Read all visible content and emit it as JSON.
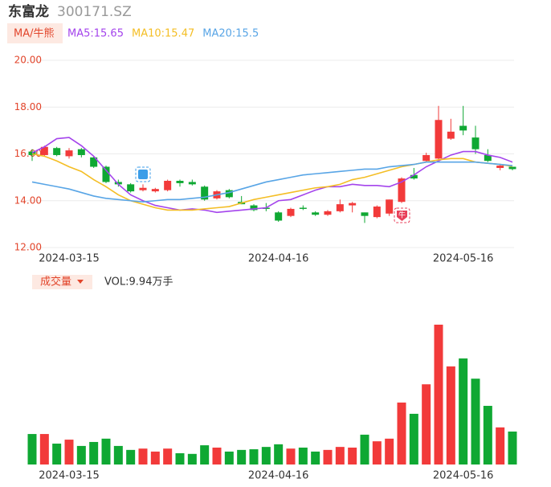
{
  "header": {
    "name": "东富龙",
    "code": "300171.SZ"
  },
  "chart_data": [
    {
      "type": "candlestick",
      "button": "MA/牛熊",
      "categories": [
        null,
        null,
        null,
        "2024-03-15",
        null,
        null,
        null,
        null,
        null,
        null,
        null,
        null,
        null,
        null,
        null,
        null,
        null,
        null,
        null,
        null,
        "2024-04-16",
        null,
        null,
        null,
        null,
        null,
        null,
        null,
        null,
        null,
        null,
        null,
        null,
        null,
        null,
        "2024-05-16",
        null,
        null,
        null,
        null
      ],
      "open": [
        16.1,
        15.95,
        16.25,
        15.9,
        16.2,
        15.85,
        15.45,
        14.8,
        14.7,
        14.45,
        14.4,
        14.45,
        14.85,
        14.8,
        14.6,
        14.1,
        14.45,
        13.95,
        13.8,
        13.7,
        13.5,
        13.35,
        13.7,
        13.5,
        13.4,
        13.55,
        13.8,
        13.5,
        13.3,
        13.45,
        13.95,
        15.1,
        15.7,
        15.8,
        16.65,
        17.2,
        16.7,
        15.95,
        15.4,
        15.45
      ],
      "high": [
        16.2,
        16.35,
        16.3,
        16.25,
        16.25,
        15.9,
        15.5,
        14.9,
        14.75,
        14.7,
        14.55,
        14.9,
        14.9,
        14.9,
        14.65,
        14.45,
        14.5,
        14.2,
        13.85,
        13.9,
        13.55,
        13.7,
        13.8,
        13.55,
        13.6,
        14.05,
        13.95,
        13.5,
        13.8,
        14.05,
        15.0,
        15.4,
        16.05,
        18.05,
        17.5,
        18.05,
        17.2,
        16.2,
        15.55,
        15.45
      ],
      "low": [
        15.7,
        15.9,
        15.9,
        15.8,
        15.85,
        15.4,
        14.75,
        14.6,
        14.35,
        14.4,
        14.35,
        14.4,
        14.6,
        14.65,
        14.0,
        14.05,
        14.1,
        13.85,
        13.55,
        13.55,
        13.1,
        13.3,
        13.6,
        13.35,
        13.35,
        13.5,
        13.5,
        13.05,
        13.25,
        13.35,
        13.9,
        14.9,
        15.65,
        15.7,
        16.6,
        16.8,
        16.0,
        15.65,
        15.3,
        15.3
      ],
      "close": [
        15.95,
        16.3,
        15.95,
        16.15,
        15.95,
        15.45,
        14.8,
        14.7,
        14.4,
        14.55,
        14.5,
        14.85,
        14.75,
        14.7,
        14.05,
        14.4,
        14.15,
        13.85,
        13.6,
        13.65,
        13.15,
        13.65,
        13.65,
        13.4,
        13.55,
        13.85,
        13.9,
        13.35,
        13.75,
        14.05,
        14.95,
        14.95,
        15.95,
        17.45,
        16.95,
        17.0,
        16.2,
        15.7,
        15.5,
        15.35
      ],
      "up_color": "#f23a3a",
      "down_color": "#0fa833",
      "series": [
        {
          "name": "MA5:15.65",
          "color": "#a444ec",
          "values": [
            16.05,
            16.3,
            16.65,
            16.7,
            16.35,
            15.9,
            15.3,
            14.7,
            14.25,
            14.0,
            13.8,
            13.7,
            13.6,
            13.65,
            13.6,
            13.5,
            13.55,
            13.6,
            13.65,
            13.7,
            14.0,
            14.05,
            14.25,
            14.45,
            14.6,
            14.6,
            14.7,
            14.65,
            14.65,
            14.6,
            14.8,
            15.1,
            15.45,
            15.7,
            15.95,
            16.1,
            16.1,
            15.95,
            15.85,
            15.65
          ]
        },
        {
          "name": "MA10:15.47",
          "color": "#f4be25",
          "values": [
            16.0,
            15.9,
            15.7,
            15.45,
            15.25,
            14.9,
            14.6,
            14.25,
            14.0,
            13.85,
            13.7,
            13.6,
            13.6,
            13.6,
            13.65,
            13.7,
            13.75,
            13.9,
            14.05,
            14.15,
            14.25,
            14.35,
            14.45,
            14.55,
            14.6,
            14.7,
            14.9,
            15.0,
            15.15,
            15.3,
            15.45,
            15.55,
            15.65,
            15.75,
            15.8,
            15.8,
            15.65,
            15.6,
            15.55,
            15.47
          ]
        },
        {
          "name": "MA20:15.5",
          "color": "#58a5e6",
          "values": [
            14.8,
            14.7,
            14.6,
            14.5,
            14.35,
            14.2,
            14.1,
            14.05,
            14.0,
            13.95,
            14.0,
            14.05,
            14.05,
            14.1,
            14.15,
            14.25,
            14.35,
            14.5,
            14.65,
            14.8,
            14.9,
            15.0,
            15.1,
            15.15,
            15.2,
            15.25,
            15.3,
            15.35,
            15.35,
            15.45,
            15.5,
            15.55,
            15.65,
            15.65,
            15.65,
            15.65,
            15.65,
            15.6,
            15.55,
            15.5
          ]
        }
      ],
      "annotations": [
        "牛"
      ],
      "ylim": [
        12,
        20
      ],
      "yticks": [
        {
          "value": 20,
          "label": "20.00"
        },
        {
          "value": 18,
          "label": "18.00"
        },
        {
          "value": 16,
          "label": "16.00"
        },
        {
          "value": 14,
          "label": "14.00"
        },
        {
          "value": 12,
          "label": "12.00"
        }
      ],
      "grid": true
    },
    {
      "type": "bar",
      "button": "成交量",
      "title": "VOL:9.94万手",
      "categories": [
        null,
        null,
        null,
        "2024-03-15",
        null,
        null,
        null,
        null,
        null,
        null,
        null,
        null,
        null,
        null,
        null,
        null,
        null,
        null,
        null,
        null,
        "2024-04-16",
        null,
        null,
        null,
        null,
        null,
        null,
        null,
        null,
        null,
        null,
        null,
        null,
        null,
        null,
        "2024-05-16",
        null,
        null,
        null,
        null
      ],
      "values": [
        9.2,
        9.2,
        6.3,
        7.5,
        5.6,
        6.8,
        7.8,
        5.6,
        4.4,
        4.8,
        3.9,
        4.8,
        3.4,
        3.2,
        5.8,
        5.1,
        3.9,
        4.4,
        4.6,
        5.3,
        6.1,
        4.8,
        5.1,
        3.9,
        4.4,
        5.3,
        5.1,
        9.0,
        7.0,
        7.8,
        18.7,
        15.3,
        24.2,
        42.2,
        29.6,
        32.0,
        25.9,
        17.7,
        11.2,
        9.94
      ]
    }
  ]
}
